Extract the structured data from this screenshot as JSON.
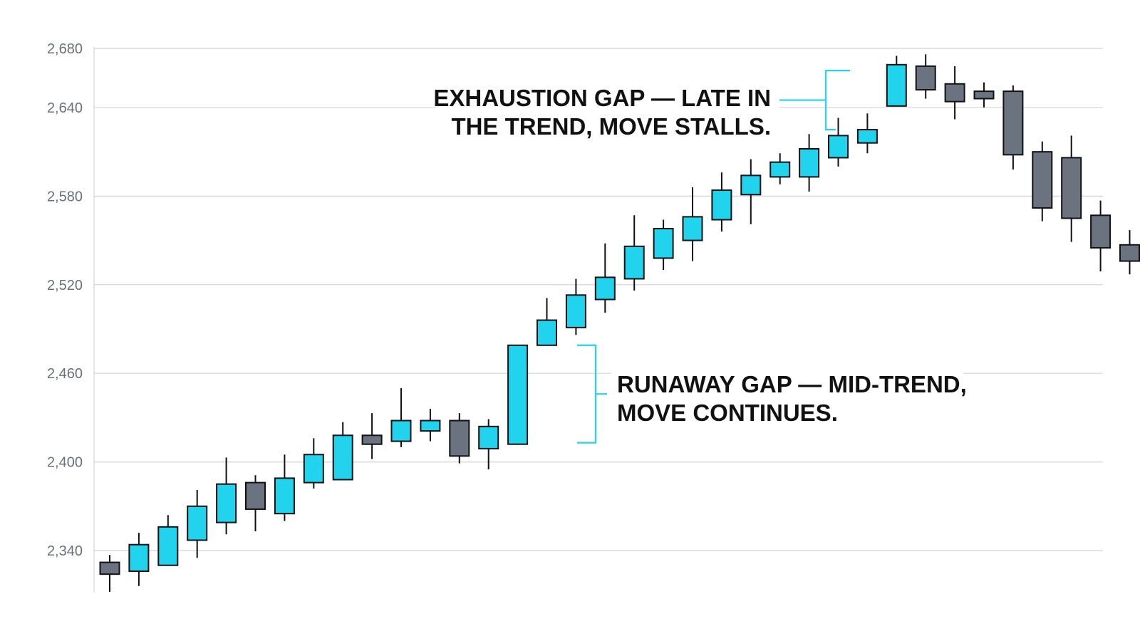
{
  "chart_data": {
    "type": "candlestick",
    "ylim": [
      2310,
      2690
    ],
    "yticks": [
      {
        "value": 2340,
        "label": "2,340"
      },
      {
        "value": 2400,
        "label": "2,400"
      },
      {
        "value": 2460,
        "label": "2,460"
      },
      {
        "value": 2520,
        "label": "2,520"
      },
      {
        "value": 2580,
        "label": "2,580"
      },
      {
        "value": 2640,
        "label": "2,640"
      },
      {
        "value": 2680,
        "label": "2,680"
      }
    ],
    "grid": true,
    "colors": {
      "up": "#22d3ee",
      "down": "#6b7280",
      "outline": "#111111",
      "grid": "#d4d4d4",
      "bracket": "#22d3ee"
    },
    "candles": [
      {
        "open": 2332,
        "close": 2324,
        "high": 2337,
        "low": 2312
      },
      {
        "open": 2326,
        "close": 2344,
        "high": 2352,
        "low": 2316
      },
      {
        "open": 2330,
        "close": 2356,
        "high": 2364,
        "low": 2330
      },
      {
        "open": 2347,
        "close": 2370,
        "high": 2381,
        "low": 2335
      },
      {
        "open": 2359,
        "close": 2385,
        "high": 2403,
        "low": 2351
      },
      {
        "open": 2386,
        "close": 2368,
        "high": 2391,
        "low": 2353
      },
      {
        "open": 2365,
        "close": 2389,
        "high": 2405,
        "low": 2360
      },
      {
        "open": 2386,
        "close": 2405,
        "high": 2416,
        "low": 2382
      },
      {
        "open": 2388,
        "close": 2418,
        "high": 2427,
        "low": 2388
      },
      {
        "open": 2418,
        "close": 2412,
        "high": 2433,
        "low": 2402
      },
      {
        "open": 2414,
        "close": 2428,
        "high": 2450,
        "low": 2410
      },
      {
        "open": 2421,
        "close": 2428,
        "high": 2436,
        "low": 2414
      },
      {
        "open": 2428,
        "close": 2404,
        "high": 2433,
        "low": 2399
      },
      {
        "open": 2409,
        "close": 2424,
        "high": 2429,
        "low": 2395
      },
      {
        "open": 2412,
        "close": 2479,
        "high": 2479,
        "low": 2412
      },
      {
        "open": 2479,
        "close": 2496,
        "high": 2511,
        "low": 2479
      },
      {
        "open": 2491,
        "close": 2513,
        "high": 2524,
        "low": 2486
      },
      {
        "open": 2510,
        "close": 2525,
        "high": 2548,
        "low": 2501
      },
      {
        "open": 2524,
        "close": 2546,
        "high": 2567,
        "low": 2516
      },
      {
        "open": 2538,
        "close": 2558,
        "high": 2564,
        "low": 2530
      },
      {
        "open": 2550,
        "close": 2566,
        "high": 2586,
        "low": 2536
      },
      {
        "open": 2564,
        "close": 2584,
        "high": 2596,
        "low": 2556
      },
      {
        "open": 2581,
        "close": 2594,
        "high": 2605,
        "low": 2561
      },
      {
        "open": 2593,
        "close": 2603,
        "high": 2609,
        "low": 2588
      },
      {
        "open": 2593,
        "close": 2612,
        "high": 2622,
        "low": 2583
      },
      {
        "open": 2606,
        "close": 2621,
        "high": 2633,
        "low": 2600
      },
      {
        "open": 2616,
        "close": 2625,
        "high": 2636,
        "low": 2609
      },
      {
        "open": 2641,
        "close": 2669,
        "high": 2675,
        "low": 2641
      },
      {
        "open": 2668,
        "close": 2652,
        "high": 2676,
        "low": 2646
      },
      {
        "open": 2656,
        "close": 2644,
        "high": 2668,
        "low": 2632
      },
      {
        "open": 2651,
        "close": 2646,
        "high": 2657,
        "low": 2640
      },
      {
        "open": 2651,
        "close": 2608,
        "high": 2655,
        "low": 2598
      },
      {
        "open": 2610,
        "close": 2572,
        "high": 2617,
        "low": 2563
      },
      {
        "open": 2606,
        "close": 2565,
        "high": 2621,
        "low": 2549
      },
      {
        "open": 2567,
        "close": 2545,
        "high": 2577,
        "low": 2529
      },
      {
        "open": 2547,
        "close": 2536,
        "high": 2557,
        "low": 2527
      }
    ],
    "annotations": [
      {
        "name": "exhaustion-gap",
        "lines": [
          "EXHAUSTION GAP — LATE IN",
          "THE TREND, MOVE STALLS."
        ],
        "align": "right",
        "bracket_side": "left",
        "bracket_range": [
          2625,
          2665
        ]
      },
      {
        "name": "runaway-gap",
        "lines": [
          "RUNAWAY GAP — MID-TREND,",
          "MOVE CONTINUES."
        ],
        "align": "left",
        "bracket_side": "right",
        "bracket_range": [
          2413,
          2479
        ]
      }
    ]
  }
}
